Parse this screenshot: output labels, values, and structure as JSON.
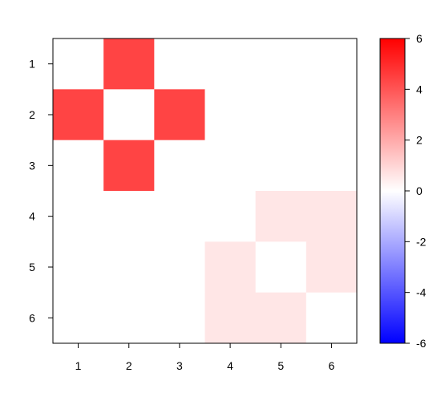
{
  "chart_data": {
    "type": "heatmap",
    "title": "",
    "xlabel": "",
    "ylabel": "",
    "rows": [
      "1",
      "2",
      "3",
      "4",
      "5",
      "6"
    ],
    "columns": [
      "1",
      "2",
      "3",
      "4",
      "5",
      "6"
    ],
    "values": [
      [
        0,
        4.4,
        0,
        0,
        0,
        0
      ],
      [
        4.4,
        0,
        4.4,
        0,
        0,
        0
      ],
      [
        0,
        4.4,
        0,
        0,
        0,
        0
      ],
      [
        0,
        0,
        0,
        0,
        0.6,
        0.6
      ],
      [
        0,
        0,
        0,
        0.6,
        0,
        0.6
      ],
      [
        0,
        0,
        0,
        0.6,
        0.6,
        0
      ]
    ],
    "color_scale": {
      "min": -6,
      "max": 6,
      "low_color": "#0000ff",
      "mid_color": "#ffffff",
      "high_color": "#ff0000",
      "ticks": [
        "6",
        "4",
        "2",
        "0",
        "-2",
        "-4",
        "-6"
      ],
      "tick_values": [
        6,
        4,
        2,
        0,
        -2,
        -4,
        -6
      ]
    },
    "legend_position": "right",
    "grid": false
  }
}
